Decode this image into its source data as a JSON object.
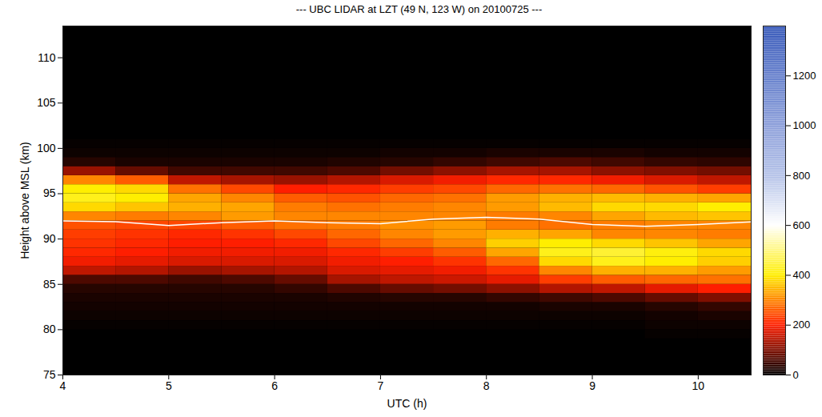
{
  "chart_data": {
    "type": "heatmap",
    "title": "--- UBC LIDAR at LZT (49 N, 123 W) on 20100725 ---",
    "x_label": "UTC (h)",
    "y_label": "Height above MSL (km)",
    "xlim": [
      4,
      10.5
    ],
    "xticks": [
      4,
      5,
      6,
      7,
      8,
      9,
      10
    ],
    "ylim": [
      75,
      113.5
    ],
    "yticks": [
      75,
      80,
      85,
      90,
      95,
      100,
      105,
      110
    ],
    "cells": {
      "x_bins": [
        4,
        4.5,
        5,
        5.5,
        6,
        6.5,
        7,
        7.5,
        8,
        8.5,
        9,
        9.5,
        10,
        10.5
      ],
      "y_bins": [
        78,
        79,
        80,
        81,
        82,
        83,
        84,
        85,
        86,
        87,
        88,
        89,
        90,
        91,
        92,
        93,
        94,
        95,
        96,
        97,
        98,
        99,
        100,
        101,
        102
      ],
      "values": [
        [
          0,
          0,
          5,
          10,
          15,
          20,
          30,
          60,
          150,
          190,
          210,
          220,
          230,
          250,
          300,
          380,
          420,
          400,
          300,
          120,
          30,
          10,
          5,
          0
        ],
        [
          0,
          0,
          5,
          10,
          15,
          20,
          30,
          60,
          140,
          180,
          200,
          210,
          220,
          240,
          290,
          360,
          400,
          380,
          260,
          80,
          20,
          10,
          5,
          0
        ],
        [
          0,
          0,
          5,
          10,
          15,
          20,
          30,
          50,
          120,
          170,
          190,
          200,
          210,
          240,
          300,
          340,
          330,
          280,
          150,
          50,
          20,
          10,
          5,
          0
        ],
        [
          0,
          0,
          5,
          10,
          15,
          20,
          30,
          60,
          130,
          170,
          190,
          200,
          220,
          260,
          320,
          330,
          300,
          240,
          130,
          50,
          20,
          10,
          5,
          0
        ],
        [
          0,
          0,
          5,
          10,
          15,
          20,
          40,
          80,
          140,
          170,
          190,
          210,
          240,
          280,
          300,
          290,
          260,
          200,
          120,
          50,
          20,
          10,
          5,
          0
        ],
        [
          0,
          0,
          5,
          10,
          15,
          25,
          60,
          130,
          170,
          190,
          210,
          240,
          270,
          290,
          300,
          280,
          250,
          210,
          140,
          60,
          25,
          10,
          5,
          0
        ],
        [
          0,
          0,
          5,
          10,
          15,
          30,
          80,
          150,
          180,
          200,
          230,
          270,
          300,
          310,
          300,
          290,
          270,
          230,
          170,
          90,
          30,
          15,
          5,
          0
        ],
        [
          0,
          0,
          5,
          10,
          15,
          30,
          90,
          160,
          190,
          220,
          260,
          300,
          320,
          320,
          300,
          300,
          280,
          240,
          190,
          110,
          40,
          15,
          5,
          0
        ],
        [
          0,
          0,
          5,
          10,
          15,
          40,
          110,
          180,
          220,
          270,
          330,
          370,
          340,
          290,
          290,
          320,
          320,
          270,
          210,
          130,
          50,
          20,
          5,
          0
        ],
        [
          0,
          0,
          5,
          10,
          20,
          50,
          140,
          230,
          300,
          380,
          420,
          400,
          330,
          280,
          300,
          350,
          340,
          280,
          210,
          130,
          60,
          20,
          5,
          0
        ],
        [
          0,
          0,
          5,
          10,
          20,
          60,
          150,
          260,
          340,
          420,
          440,
          380,
          300,
          290,
          330,
          380,
          350,
          270,
          190,
          110,
          50,
          20,
          5,
          0
        ],
        [
          0,
          5,
          10,
          15,
          30,
          80,
          180,
          270,
          340,
          400,
          410,
          360,
          300,
          300,
          350,
          380,
          340,
          250,
          170,
          100,
          40,
          15,
          5,
          0
        ],
        [
          0,
          5,
          10,
          20,
          40,
          100,
          200,
          280,
          320,
          370,
          380,
          330,
          290,
          300,
          360,
          400,
          330,
          230,
          150,
          90,
          35,
          15,
          5,
          0
        ]
      ]
    },
    "colorbar": {
      "range": [
        0,
        1400
      ],
      "ticks": [
        0,
        200,
        400,
        600,
        800,
        1000,
        1200
      ],
      "colors": [
        "#000000",
        "#ff1e00",
        "#ffee00",
        "#ffffff",
        "#b4c2e8",
        "#8c9fda",
        "#6680cc",
        "#3456b8"
      ]
    },
    "series": [
      {
        "type": "line",
        "color": "#ffffff",
        "x": [
          4,
          4.5,
          5,
          5.5,
          6,
          6.5,
          7,
          7.5,
          8,
          8.5,
          9,
          9.5,
          10,
          10.5
        ],
        "values": [
          92.0,
          91.9,
          91.5,
          91.8,
          92.0,
          91.8,
          91.7,
          92.2,
          92.4,
          92.2,
          91.6,
          91.4,
          91.6,
          91.9
        ]
      }
    ]
  }
}
